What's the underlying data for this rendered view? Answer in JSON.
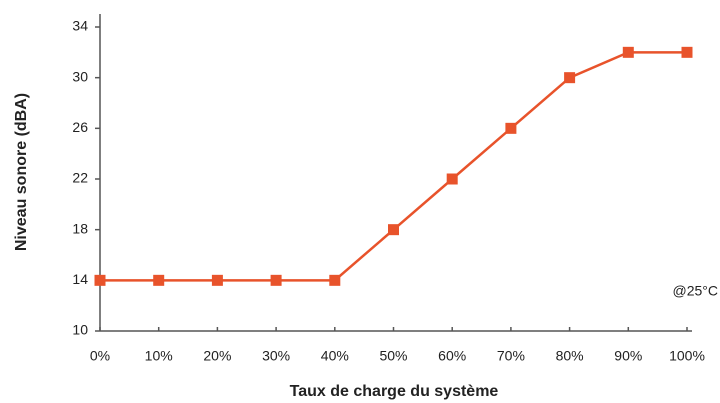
{
  "chart_data": {
    "type": "line",
    "xlabel": "Taux de charge du système",
    "ylabel": "Niveau sonore (dBA)",
    "annotation": "@25°C",
    "categories": [
      "0%",
      "10%",
      "20%",
      "30%",
      "40%",
      "50%",
      "60%",
      "70%",
      "80%",
      "90%",
      "100%"
    ],
    "series": [
      {
        "color": "#e8532b",
        "values": [
          14,
          14,
          14,
          14,
          14,
          18,
          22,
          26,
          30,
          32,
          32
        ]
      }
    ],
    "ylim": [
      10,
      34
    ],
    "yticks": [
      10,
      14,
      18,
      22,
      26,
      30,
      34
    ],
    "grid": false
  }
}
